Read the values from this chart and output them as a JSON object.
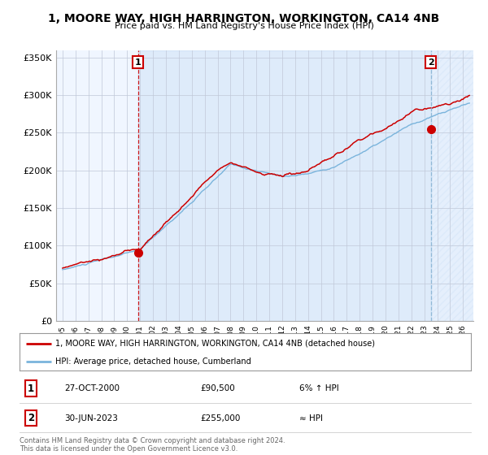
{
  "title": "1, MOORE WAY, HIGH HARRINGTON, WORKINGTON, CA14 4NB",
  "subtitle": "Price paid vs. HM Land Registry's House Price Index (HPI)",
  "ylim": [
    0,
    360000
  ],
  "yticks": [
    0,
    50000,
    100000,
    150000,
    200000,
    250000,
    300000,
    350000
  ],
  "ytick_labels": [
    "£0",
    "£50K",
    "£100K",
    "£150K",
    "£200K",
    "£250K",
    "£300K",
    "£350K"
  ],
  "sale1_date": "27-OCT-2000",
  "sale1_price": 90500,
  "sale1_label": "6% ↑ HPI",
  "sale2_date": "30-JUN-2023",
  "sale2_price": 255000,
  "sale2_label": "≈ HPI",
  "legend_line1": "1, MOORE WAY, HIGH HARRINGTON, WORKINGTON, CA14 4NB (detached house)",
  "legend_line2": "HPI: Average price, detached house, Cumberland",
  "footer": "Contains HM Land Registry data © Crown copyright and database right 2024.\nThis data is licensed under the Open Government Licence v3.0.",
  "hpi_color": "#7ab4dc",
  "price_color": "#cc0000",
  "vline1_color": "#cc0000",
  "vline2_color": "#8ab4d4",
  "bg_fill_color": "#ddeeff",
  "chart_bg_color": "#f0f6ff",
  "background_color": "#ffffff",
  "grid_color": "#c0c8d8",
  "sale1_year": 2000.833,
  "sale2_year": 2023.5,
  "xlim_left": 1994.5,
  "xlim_right": 2026.8
}
